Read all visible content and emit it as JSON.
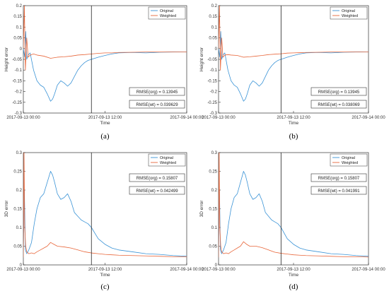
{
  "legend": {
    "original": "Original",
    "weighted": "Weighted"
  },
  "colors": {
    "original": "#3a93d6",
    "weighted": "#e8663a",
    "axis": "#333333",
    "vline": "#222222"
  },
  "chart_data": [
    {
      "type": "line",
      "panel_label": "(a)",
      "xlabel": "Time",
      "ylabel": "Height error",
      "ylim": [
        -0.3,
        0.2
      ],
      "yticks": [
        -0.3,
        -0.25,
        -0.2,
        -0.15,
        -0.1,
        -0.05,
        0,
        0.05,
        0.1,
        0.15,
        0.2
      ],
      "ytick_labels": [
        "-0.3",
        "-0.25",
        "-0.2",
        "-0.15",
        "-0.1",
        "-0.05",
        "0",
        "0.05",
        "0.1",
        "0.15",
        "0.2"
      ],
      "xlim": [
        0,
        24
      ],
      "xticks": [
        0,
        12,
        24
      ],
      "xtick_labels": [
        "2017-09-13 00:00",
        "2017-09-13 12:00",
        "2017-09-14 00:00"
      ],
      "vline_x": 10,
      "legend_position": "top-right",
      "annotations": [
        "RMSE(org) = 0.13945",
        "RMSE(wt) = 0.039629"
      ],
      "series": [
        {
          "name": "Original",
          "x": [
            0,
            0.2,
            0.35,
            0.5,
            0.7,
            1,
            1.5,
            2,
            2.5,
            3,
            3.5,
            4,
            4.3,
            4.6,
            5,
            5.5,
            6,
            6.5,
            7,
            7.5,
            8,
            8.5,
            9,
            9.5,
            10,
            11,
            12,
            13,
            14,
            16,
            18,
            20,
            22,
            24
          ],
          "y": [
            0,
            -0.04,
            0.08,
            -0.05,
            -0.03,
            -0.02,
            -0.1,
            -0.15,
            -0.17,
            -0.18,
            -0.21,
            -0.245,
            -0.235,
            -0.21,
            -0.17,
            -0.15,
            -0.16,
            -0.175,
            -0.16,
            -0.13,
            -0.1,
            -0.08,
            -0.065,
            -0.055,
            -0.05,
            -0.04,
            -0.032,
            -0.025,
            -0.02,
            -0.018,
            -0.02,
            -0.017,
            -0.016,
            -0.015
          ]
        },
        {
          "name": "Weighted",
          "x": [
            0,
            0.15,
            0.3,
            0.5,
            0.7,
            1,
            1.5,
            2,
            3,
            4,
            5,
            6,
            7,
            8,
            9,
            10,
            11,
            12,
            13,
            14,
            16,
            18,
            20,
            22,
            24
          ],
          "y": [
            0,
            0.2,
            -0.1,
            0.05,
            -0.04,
            -0.03,
            -0.025,
            -0.03,
            -0.035,
            -0.045,
            -0.04,
            -0.038,
            -0.035,
            -0.03,
            -0.028,
            -0.025,
            -0.022,
            -0.02,
            -0.02,
            -0.018,
            -0.017,
            -0.016,
            -0.016,
            -0.015,
            -0.015
          ]
        }
      ]
    },
    {
      "type": "line",
      "panel_label": "(b)",
      "xlabel": "Time",
      "ylabel": "Height error",
      "ylim": [
        -0.3,
        0.2
      ],
      "yticks": [
        -0.3,
        -0.25,
        -0.2,
        -0.15,
        -0.1,
        -0.05,
        0,
        0.05,
        0.1,
        0.15,
        0.2
      ],
      "ytick_labels": [
        "-0.3",
        "-0.25",
        "-0.2",
        "-0.15",
        "-0.1",
        "-0.05",
        "0",
        "0.05",
        "0.1",
        "0.15",
        "0.2"
      ],
      "xlim": [
        0,
        24
      ],
      "xticks": [
        0,
        12,
        24
      ],
      "xtick_labels": [
        "2017-09-13 00:00",
        "2017-09-13 12:00",
        "2017-09-14 00:00"
      ],
      "vline_x": 10,
      "legend_position": "top-right",
      "annotations": [
        "RMSE(org) = 0.13945",
        "RMSE(wt) = 0.038069"
      ],
      "series": [
        {
          "name": "Original",
          "x": [
            0,
            0.2,
            0.35,
            0.5,
            0.7,
            1,
            1.5,
            2,
            2.5,
            3,
            3.5,
            4,
            4.3,
            4.6,
            5,
            5.5,
            6,
            6.5,
            7,
            7.5,
            8,
            8.5,
            9,
            9.5,
            10,
            11,
            12,
            13,
            14,
            16,
            18,
            20,
            22,
            24
          ],
          "y": [
            0,
            -0.04,
            0.08,
            -0.05,
            -0.03,
            -0.02,
            -0.1,
            -0.15,
            -0.17,
            -0.18,
            -0.21,
            -0.245,
            -0.235,
            -0.21,
            -0.17,
            -0.15,
            -0.16,
            -0.175,
            -0.16,
            -0.13,
            -0.1,
            -0.08,
            -0.065,
            -0.055,
            -0.05,
            -0.04,
            -0.032,
            -0.025,
            -0.02,
            -0.018,
            -0.02,
            -0.017,
            -0.016,
            -0.015
          ]
        },
        {
          "name": "Weighted",
          "x": [
            0,
            0.15,
            0.3,
            0.5,
            0.7,
            1,
            1.5,
            2,
            3,
            4,
            5,
            6,
            7,
            8,
            9,
            10,
            11,
            12,
            13,
            14,
            16,
            18,
            20,
            22,
            24
          ],
          "y": [
            0,
            0.2,
            -0.1,
            0.05,
            -0.04,
            -0.03,
            -0.028,
            -0.03,
            -0.032,
            -0.04,
            -0.038,
            -0.035,
            -0.032,
            -0.028,
            -0.026,
            -0.024,
            -0.021,
            -0.02,
            -0.019,
            -0.018,
            -0.017,
            -0.016,
            -0.016,
            -0.015,
            -0.015
          ]
        }
      ]
    },
    {
      "type": "line",
      "panel_label": "(c)",
      "xlabel": "Time",
      "ylabel": "3D error",
      "ylim": [
        0,
        0.3
      ],
      "yticks": [
        0,
        0.05,
        0.1,
        0.15,
        0.2,
        0.25,
        0.3
      ],
      "ytick_labels": [
        "0",
        "0.05",
        "0.1",
        "0.15",
        "0.2",
        "0.25",
        "0.3"
      ],
      "xlim": [
        0,
        24
      ],
      "xticks": [
        0,
        12,
        24
      ],
      "xtick_labels": [
        "2017-09-13 00:00",
        "2017-09-13 12:00",
        "2017-09-14 00:00"
      ],
      "vline_x": 10,
      "legend_position": "top-right",
      "annotations": [
        "RMSE(org) = 0.15807",
        "RMSE(wt) = 0.042499"
      ],
      "series": [
        {
          "name": "Original",
          "x": [
            0,
            0.15,
            0.3,
            0.5,
            0.8,
            1.2,
            1.6,
            2,
            2.5,
            3,
            3.5,
            4,
            4.3,
            4.6,
            5,
            5.5,
            6,
            6.5,
            7,
            7.5,
            8,
            8.5,
            9,
            9.5,
            10,
            11,
            12,
            13,
            14,
            16,
            18,
            20,
            22,
            24
          ],
          "y": [
            0.02,
            0.2,
            0.04,
            0.03,
            0.04,
            0.06,
            0.11,
            0.15,
            0.18,
            0.19,
            0.22,
            0.25,
            0.24,
            0.22,
            0.19,
            0.175,
            0.18,
            0.19,
            0.17,
            0.14,
            0.13,
            0.12,
            0.115,
            0.11,
            0.1,
            0.07,
            0.055,
            0.045,
            0.04,
            0.035,
            0.03,
            0.028,
            0.025,
            0.023
          ]
        },
        {
          "name": "Weighted",
          "x": [
            0,
            0.1,
            0.2,
            0.35,
            0.5,
            0.8,
            1.2,
            1.6,
            2,
            2.5,
            3,
            3.5,
            4,
            4.5,
            5,
            6,
            7,
            8,
            9,
            10,
            11,
            12,
            13,
            14,
            16,
            18,
            20,
            22,
            24
          ],
          "y": [
            0.02,
            0.3,
            0.1,
            0.05,
            0.035,
            0.03,
            0.032,
            0.03,
            0.035,
            0.04,
            0.045,
            0.05,
            0.06,
            0.055,
            0.05,
            0.048,
            0.045,
            0.04,
            0.035,
            0.032,
            0.03,
            0.028,
            0.027,
            0.026,
            0.025,
            0.024,
            0.023,
            0.022,
            0.022
          ]
        }
      ]
    },
    {
      "type": "line",
      "panel_label": "(d)",
      "xlabel": "Time",
      "ylabel": "3D error",
      "ylim": [
        0,
        0.3
      ],
      "yticks": [
        0,
        0.05,
        0.1,
        0.15,
        0.2,
        0.25,
        0.3
      ],
      "ytick_labels": [
        "0",
        "0.05",
        "0.1",
        "0.15",
        "0.2",
        "0.25",
        "0.3"
      ],
      "xlim": [
        0,
        24
      ],
      "xticks": [
        0,
        12,
        24
      ],
      "xtick_labels": [
        "2017-09-13 00:00",
        "2017-09-13 12:00",
        "2017-09-14 00:00"
      ],
      "vline_x": 10,
      "legend_position": "top-right",
      "annotations": [
        "RMSE(org) = 0.15807",
        "RMSE(wt) = 0.041991"
      ],
      "series": [
        {
          "name": "Original",
          "x": [
            0,
            0.15,
            0.3,
            0.5,
            0.8,
            1.2,
            1.6,
            2,
            2.5,
            3,
            3.5,
            4,
            4.3,
            4.6,
            5,
            5.5,
            6,
            6.5,
            7,
            7.5,
            8,
            8.5,
            9,
            9.5,
            10,
            11,
            12,
            13,
            14,
            16,
            18,
            20,
            22,
            24
          ],
          "y": [
            0.02,
            0.2,
            0.04,
            0.03,
            0.04,
            0.06,
            0.11,
            0.15,
            0.18,
            0.19,
            0.22,
            0.25,
            0.24,
            0.22,
            0.19,
            0.175,
            0.18,
            0.19,
            0.17,
            0.14,
            0.13,
            0.12,
            0.115,
            0.11,
            0.1,
            0.07,
            0.055,
            0.045,
            0.04,
            0.035,
            0.03,
            0.028,
            0.025,
            0.023
          ]
        },
        {
          "name": "Weighted",
          "x": [
            0,
            0.1,
            0.2,
            0.35,
            0.5,
            0.8,
            1.2,
            1.6,
            2,
            2.5,
            3,
            3.5,
            4,
            4.5,
            5,
            6,
            7,
            8,
            9,
            10,
            11,
            12,
            13,
            14,
            16,
            18,
            20,
            22,
            24
          ],
          "y": [
            0.02,
            0.3,
            0.1,
            0.05,
            0.035,
            0.03,
            0.032,
            0.03,
            0.035,
            0.04,
            0.045,
            0.05,
            0.062,
            0.055,
            0.05,
            0.05,
            0.046,
            0.04,
            0.034,
            0.031,
            0.029,
            0.027,
            0.026,
            0.025,
            0.024,
            0.023,
            0.022,
            0.022,
            0.021
          ]
        }
      ]
    }
  ]
}
